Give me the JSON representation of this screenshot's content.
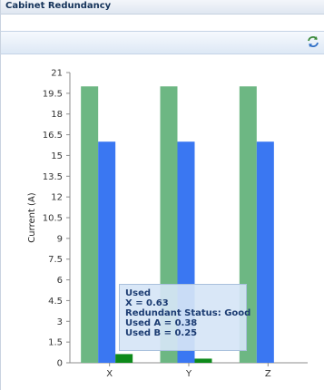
{
  "panel": {
    "title": "Cabinet Redundancy",
    "refresh_icon": "refresh-icon"
  },
  "colors": {
    "series_a": "#6db783",
    "series_b": "#3a77f2",
    "used": "#0e8a1a"
  },
  "chart_data": {
    "type": "bar",
    "ylabel": "Current (A)",
    "xlabel": "",
    "ylim": [
      0,
      21
    ],
    "yticks": [
      0,
      1.5,
      3,
      4.5,
      6,
      7.5,
      9,
      10.5,
      12,
      13.5,
      15,
      16.5,
      18,
      19.5,
      21
    ],
    "ytick_labels": [
      "0",
      "1.5",
      "3",
      "4.5",
      "6",
      "7.5",
      "9",
      "10.5",
      "12",
      "13.5",
      "15",
      "16.5",
      "18",
      "19.5",
      "21"
    ],
    "categories": [
      "X",
      "Y",
      "Z"
    ],
    "series": [
      {
        "values": [
          20,
          20,
          20
        ]
      },
      {
        "values": [
          16,
          16,
          16
        ]
      },
      {
        "name": "Used",
        "values": [
          0.63,
          0.3,
          0
        ]
      }
    ],
    "grid": false,
    "tooltip": {
      "lines": [
        "Used",
        "X = 0.63",
        "Redundant Status: Good",
        "Used A = 0.38",
        "Used B = 0.25"
      ]
    }
  }
}
